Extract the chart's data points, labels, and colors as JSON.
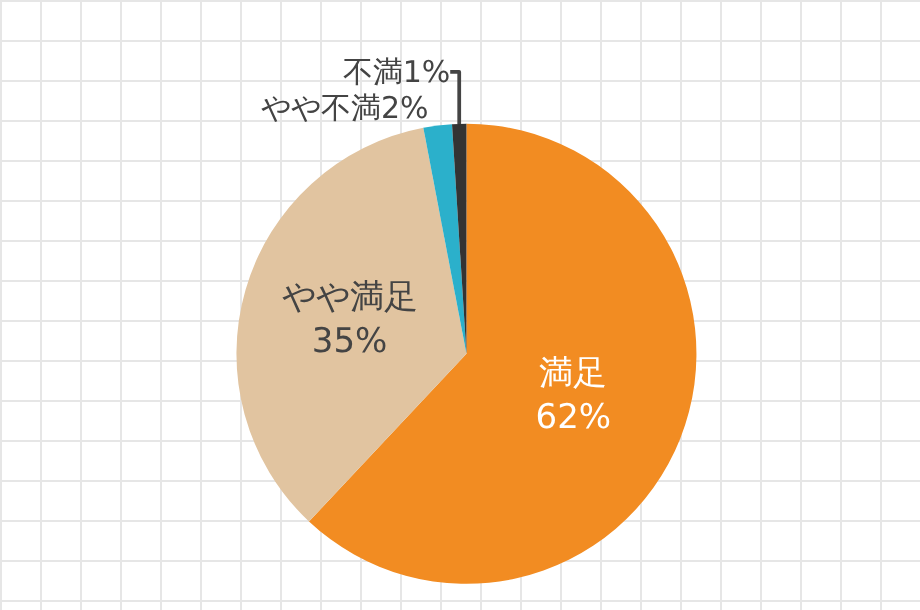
{
  "chart_data": {
    "type": "pie",
    "categories": [
      "満足",
      "やや満足",
      "やや不満",
      "不満"
    ],
    "values": [
      62,
      35,
      2,
      1
    ],
    "value_labels": [
      "62%",
      "35%",
      "2%",
      "1%"
    ],
    "colors": [
      "#f28c22",
      "#e1c4a0",
      "#2bb0cb",
      "#333333"
    ],
    "legend": false
  }
}
